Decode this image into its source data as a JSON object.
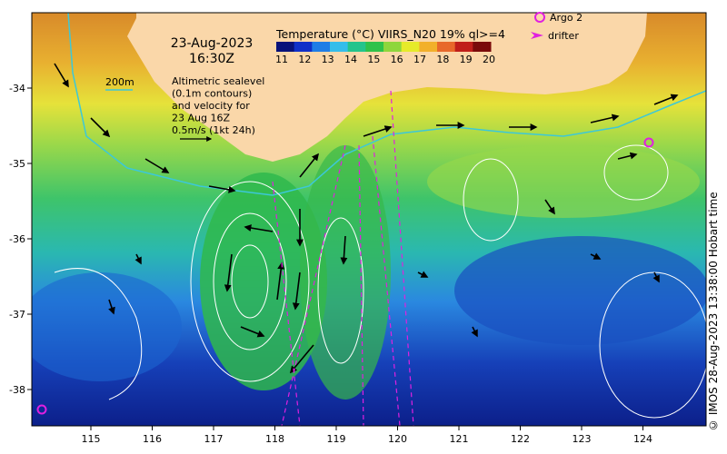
{
  "map": {
    "date": "23-Aug-2023",
    "time": "16:30Z",
    "product_title": "Temperature (°C) VIIRS_N20 19% ql>=4",
    "colorbar_ticks": [
      "11",
      "12",
      "13",
      "14",
      "15",
      "16",
      "17",
      "18",
      "19",
      "20"
    ],
    "colorbar_colors": [
      "#08127a",
      "#1030c8",
      "#1f7de6",
      "#35bdea",
      "#24c48c",
      "#2fc24a",
      "#8ed63c",
      "#e6ea2a",
      "#f2b02a",
      "#e8682a",
      "#c01e1a",
      "#7a0a0a"
    ],
    "isobath_label": "200m",
    "notes": [
      "Altimetric sealevel",
      "(0.1m contours)",
      "and velocity for",
      "23 Aug 16Z",
      "0.5m/s (1kt 24h)"
    ],
    "legend": {
      "argo": "Argo 2",
      "drifter": "drifter"
    },
    "credit": "© IMOS 28-Aug-2023 13:38:00 Hobart time",
    "x_ticks": [
      "115",
      "116",
      "117",
      "118",
      "119",
      "120",
      "121",
      "122",
      "123",
      "124"
    ],
    "y_ticks": [
      "-34",
      "-35",
      "-36",
      "-37",
      "-38"
    ],
    "colors": {
      "land": "#fad7a9",
      "isobath": "#3cc8d8",
      "argo": "#e020e0",
      "drifter": "#e020e0"
    }
  }
}
